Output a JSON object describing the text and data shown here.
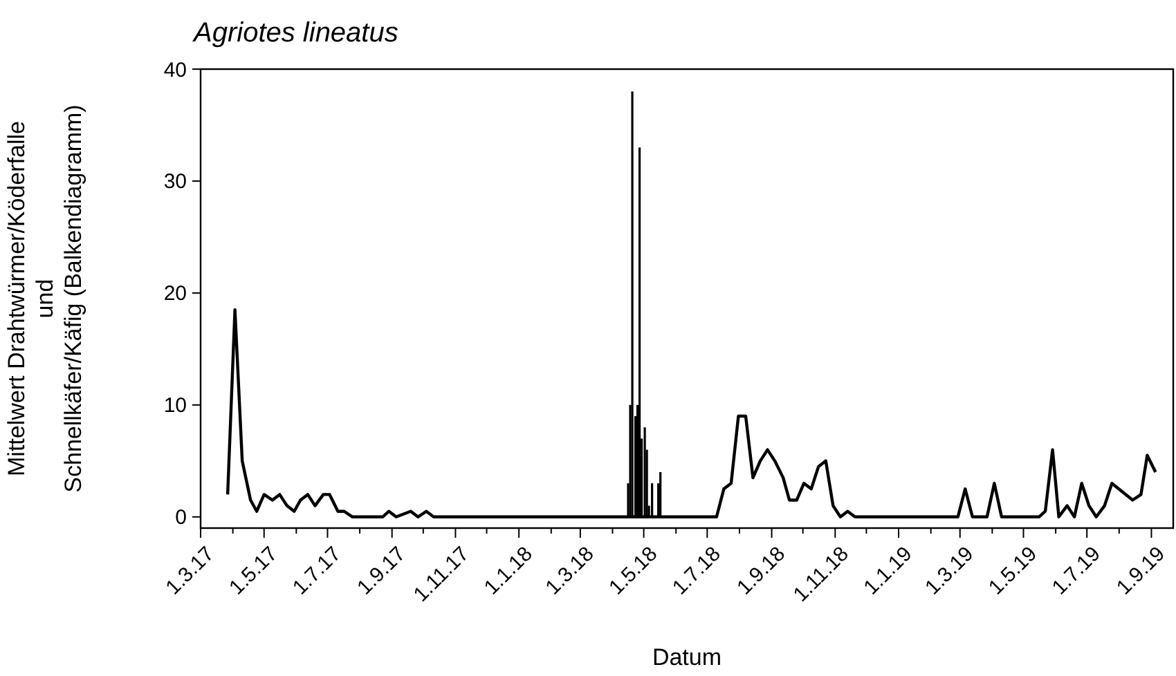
{
  "chart_data": {
    "type": "line",
    "title": "Agriotes lineatus",
    "xlabel": "Datum",
    "ylabel": "Mittelwert Drahtwürmer/Köderfalle\nund\nSchnellkäfer/Käfig (Balkendiagramm)",
    "xlim": [
      "2017-03-01",
      "2019-09-22"
    ],
    "ylim": [
      -1,
      40
    ],
    "yticks": [
      0,
      10,
      20,
      30,
      40
    ],
    "xticks": [
      {
        "value": "2017-03-01",
        "label": "1.3.17"
      },
      {
        "value": "2017-04-01",
        "label": null
      },
      {
        "value": "2017-05-01",
        "label": "1.5.17"
      },
      {
        "value": "2017-06-01",
        "label": null
      },
      {
        "value": "2017-07-01",
        "label": "1.7.17"
      },
      {
        "value": "2017-08-01",
        "label": null
      },
      {
        "value": "2017-09-01",
        "label": "1.9.17"
      },
      {
        "value": "2017-10-01",
        "label": null
      },
      {
        "value": "2017-11-01",
        "label": "1.11.17"
      },
      {
        "value": "2017-12-01",
        "label": null
      },
      {
        "value": "2018-01-01",
        "label": "1.1.18"
      },
      {
        "value": "2018-02-01",
        "label": null
      },
      {
        "value": "2018-03-01",
        "label": "1.3.18"
      },
      {
        "value": "2018-04-01",
        "label": null
      },
      {
        "value": "2018-05-01",
        "label": "1.5.18"
      },
      {
        "value": "2018-06-01",
        "label": null
      },
      {
        "value": "2018-07-01",
        "label": "1.7.18"
      },
      {
        "value": "2018-08-01",
        "label": null
      },
      {
        "value": "2018-09-01",
        "label": "1.9.18"
      },
      {
        "value": "2018-10-01",
        "label": null
      },
      {
        "value": "2018-11-01",
        "label": "1.11.18"
      },
      {
        "value": "2018-12-01",
        "label": null
      },
      {
        "value": "2019-01-01",
        "label": "1.1.19"
      },
      {
        "value": "2019-02-01",
        "label": null
      },
      {
        "value": "2019-03-01",
        "label": "1.3.19"
      },
      {
        "value": "2019-04-01",
        "label": null
      },
      {
        "value": "2019-05-01",
        "label": "1.5.19"
      },
      {
        "value": "2019-06-01",
        "label": null
      },
      {
        "value": "2019-07-01",
        "label": "1.7.19"
      },
      {
        "value": "2019-08-01",
        "label": null
      },
      {
        "value": "2019-09-01",
        "label": "1.9.19"
      }
    ],
    "grid": false,
    "marker": "none",
    "line_style": "solid",
    "series": [
      {
        "color": "#000000",
        "x": [
          "2017-03-27",
          "2017-04-03",
          "2017-04-10",
          "2017-04-18",
          "2017-04-24",
          "2017-05-01",
          "2017-05-09",
          "2017-05-16",
          "2017-05-23",
          "2017-05-30",
          "2017-06-05",
          "2017-06-12",
          "2017-06-19",
          "2017-06-27",
          "2017-07-03",
          "2017-07-11",
          "2017-07-17",
          "2017-07-25",
          "2017-08-23",
          "2017-08-29",
          "2017-09-05",
          "2017-09-19",
          "2017-09-26",
          "2017-10-04",
          "2017-10-11",
          "2018-07-10",
          "2018-07-17",
          "2018-07-24",
          "2018-07-31",
          "2018-08-07",
          "2018-08-14",
          "2018-08-21",
          "2018-08-28",
          "2018-09-04",
          "2018-09-12",
          "2018-09-18",
          "2018-09-25",
          "2018-10-02",
          "2018-10-09",
          "2018-10-16",
          "2018-10-23",
          "2018-10-30",
          "2018-11-06",
          "2018-11-13",
          "2018-11-20",
          "2019-02-27",
          "2019-03-06",
          "2019-03-13",
          "2019-03-27",
          "2019-04-03",
          "2019-04-10",
          "2019-05-16",
          "2019-05-22",
          "2019-05-29",
          "2019-06-04",
          "2019-06-12",
          "2019-06-19",
          "2019-06-26",
          "2019-07-03",
          "2019-07-10",
          "2019-07-18",
          "2019-07-25",
          "2019-08-14",
          "2019-08-22",
          "2019-08-28",
          "2019-09-05"
        ],
        "values": [
          2,
          18.5,
          5,
          1.5,
          0.5,
          2,
          1.5,
          2,
          1,
          0.5,
          1.5,
          2,
          1,
          2,
          2,
          0.5,
          0.5,
          0,
          0,
          0.5,
          0,
          0.5,
          0,
          0.5,
          0,
          0,
          2.5,
          3,
          9,
          9,
          3.5,
          5,
          6,
          5,
          3.5,
          1.5,
          1.5,
          3,
          2.5,
          4.5,
          5,
          1,
          0,
          0.5,
          0,
          0,
          2.5,
          0,
          0,
          3,
          0,
          0,
          0.5,
          6,
          0,
          1,
          0,
          3,
          1,
          0,
          1,
          3,
          1.5,
          2,
          5.5,
          4
        ]
      },
      {
        "type": "bar",
        "color": "#000000",
        "x": [
          "2018-04-16",
          "2018-04-18",
          "2018-04-20",
          "2018-04-23",
          "2018-04-25",
          "2018-04-27",
          "2018-04-29",
          "2018-05-02",
          "2018-05-04",
          "2018-05-06",
          "2018-05-09",
          "2018-05-15",
          "2018-05-17"
        ],
        "values": [
          3,
          10,
          38,
          9,
          10,
          33,
          7,
          8,
          6,
          1,
          3,
          3,
          4
        ]
      }
    ]
  }
}
